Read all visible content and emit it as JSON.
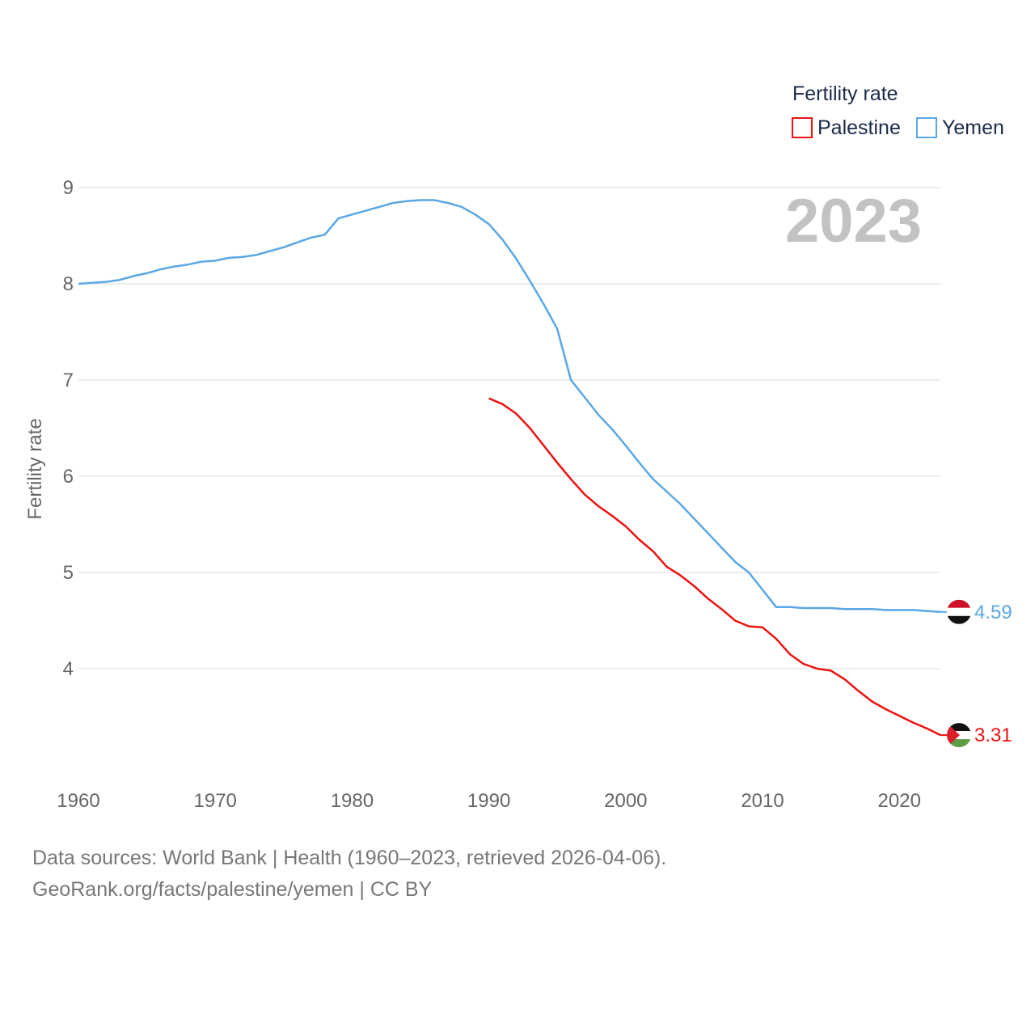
{
  "chart_data": {
    "type": "line",
    "year_label": "2023",
    "ylabel": "Fertility rate",
    "xlabel": "",
    "xlim": [
      1960,
      2023
    ],
    "ylim": [
      3,
      9.2
    ],
    "y_ticks": [
      4,
      5,
      6,
      7,
      8,
      9
    ],
    "x_ticks": [
      1960,
      1970,
      1980,
      1990,
      2000,
      2010,
      2020
    ],
    "legend": {
      "title": "Fertility rate",
      "placement": "top-right",
      "items": [
        {
          "name": "Palestine",
          "color": "#ee1111"
        },
        {
          "name": "Yemen",
          "color": "#5aa7e6"
        }
      ]
    },
    "series": [
      {
        "name": "Palestine",
        "color": "#ee1111",
        "end_label": "3.31",
        "flag_icon": "palestine-flag-icon",
        "x": [
          1990,
          1991,
          1992,
          1993,
          1994,
          1995,
          1996,
          1997,
          1998,
          1999,
          2000,
          2001,
          2002,
          2003,
          2004,
          2005,
          2006,
          2007,
          2008,
          2009,
          2010,
          2011,
          2012,
          2013,
          2014,
          2015,
          2016,
          2017,
          2018,
          2019,
          2020,
          2021,
          2022,
          2023
        ],
        "values": [
          6.81,
          6.75,
          6.65,
          6.5,
          6.32,
          6.14,
          5.97,
          5.81,
          5.69,
          5.59,
          5.48,
          5.34,
          5.22,
          5.06,
          4.97,
          4.86,
          4.73,
          4.62,
          4.5,
          4.44,
          4.43,
          4.31,
          4.15,
          4.05,
          4.0,
          3.98,
          3.89,
          3.77,
          3.66,
          3.58,
          3.51,
          3.44,
          3.38,
          3.31
        ]
      },
      {
        "name": "Yemen",
        "color": "#5aa7e6",
        "end_label": "4.59",
        "flag_icon": "yemen-flag-icon",
        "x": [
          1960,
          1961,
          1962,
          1963,
          1964,
          1965,
          1966,
          1967,
          1968,
          1969,
          1970,
          1971,
          1972,
          1973,
          1974,
          1975,
          1976,
          1977,
          1978,
          1979,
          1980,
          1981,
          1982,
          1983,
          1984,
          1985,
          1986,
          1987,
          1988,
          1989,
          1990,
          1991,
          1992,
          1993,
          1994,
          1995,
          1996,
          1997,
          1998,
          1999,
          2000,
          2001,
          2002,
          2003,
          2004,
          2005,
          2006,
          2007,
          2008,
          2009,
          2010,
          2011,
          2012,
          2013,
          2014,
          2015,
          2016,
          2017,
          2018,
          2019,
          2020,
          2021,
          2022,
          2023
        ],
        "values": [
          8.0,
          8.01,
          8.02,
          8.04,
          8.08,
          8.11,
          8.15,
          8.18,
          8.2,
          8.23,
          8.24,
          8.27,
          8.28,
          8.3,
          8.34,
          8.38,
          8.43,
          8.48,
          8.51,
          8.68,
          8.72,
          8.76,
          8.8,
          8.84,
          8.86,
          8.87,
          8.87,
          8.84,
          8.8,
          8.72,
          8.62,
          8.46,
          8.26,
          8.03,
          7.79,
          7.53,
          7.0,
          6.82,
          6.64,
          6.49,
          6.32,
          6.14,
          5.97,
          5.84,
          5.71,
          5.56,
          5.41,
          5.26,
          5.11,
          5.0,
          4.82,
          4.64,
          4.64,
          4.63,
          4.63,
          4.63,
          4.62,
          4.62,
          4.62,
          4.61,
          4.61,
          4.61,
          4.6,
          4.59
        ]
      }
    ]
  },
  "footer": {
    "line1": "Data sources: World Bank | Health (1960–2023, retrieved 2026-04-06).",
    "line2": "GeoRank.org/facts/palestine/yemen | CC BY"
  }
}
